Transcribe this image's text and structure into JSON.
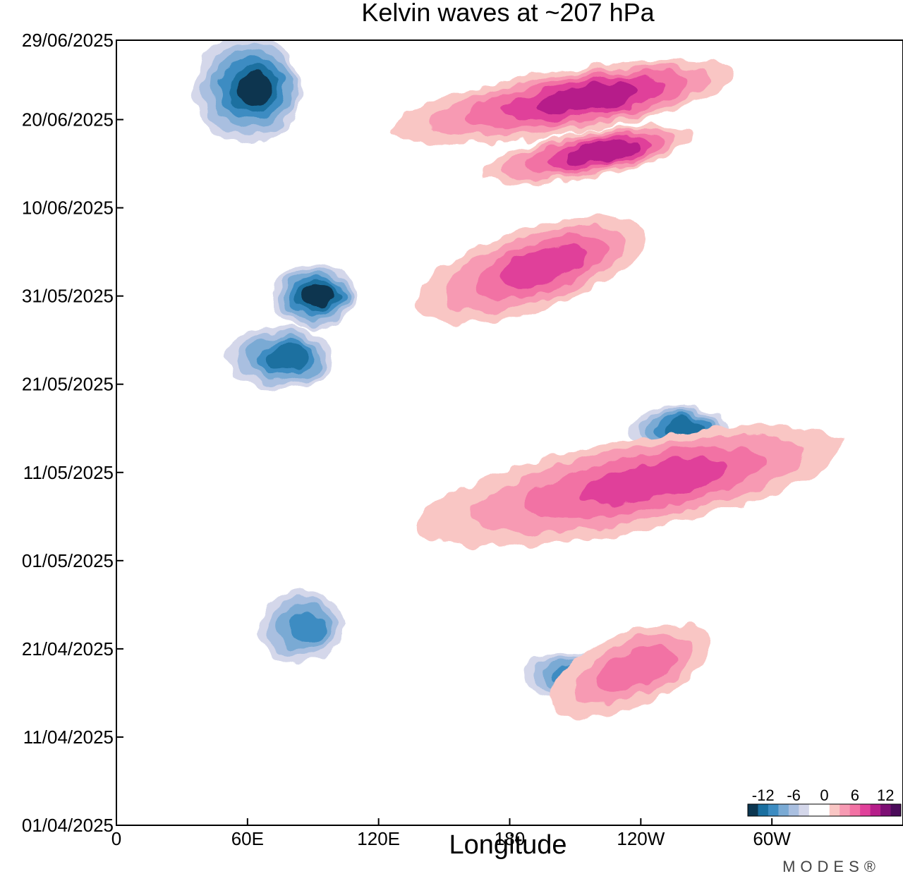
{
  "chart_data": {
    "type": "heatmap",
    "title": "Kelvin waves at ~207 hPa",
    "xlabel": "Longitude",
    "ylabel": "",
    "x_ticks": [
      "0",
      "60E",
      "120E",
      "180",
      "120W",
      "60W"
    ],
    "x_tick_values": [
      0,
      60,
      120,
      180,
      240,
      300
    ],
    "xlim": [
      0,
      360
    ],
    "y_ticks": [
      "29/06/2025",
      "20/06/2025",
      "10/06/2025",
      "31/05/2025",
      "21/05/2025",
      "11/05/2025",
      "01/05/2025",
      "21/04/2025",
      "11/04/2025",
      "01/04/2025"
    ],
    "y_tick_values": [
      "2025-06-29",
      "2025-06-20",
      "2025-06-10",
      "2025-05-31",
      "2025-05-21",
      "2025-05-11",
      "2025-05-01",
      "2025-04-21",
      "2025-04-11",
      "2025-04-01"
    ],
    "ylim": [
      "2025-04-01",
      "2025-06-29"
    ],
    "colorbar": {
      "labels": [
        "-12",
        "-6",
        "0",
        "6",
        "12"
      ],
      "label_values": [
        -12,
        -6,
        0,
        6,
        12
      ],
      "colors": [
        "#0b3650",
        "#1a6fa0",
        "#3d8cc2",
        "#7aaad4",
        "#a9bfe0",
        "#d4d7ea",
        "#ffffff",
        "#ffffff",
        "#f9c6c4",
        "#f79ab3",
        "#f272a4",
        "#e0419a",
        "#b61e8a",
        "#7d0f74",
        "#4b0b5a"
      ]
    },
    "features": [
      {
        "sign": "negative",
        "peak": -12,
        "lon": [
          40,
          80
        ],
        "date": [
          "2025-06-29",
          "2025-06-18"
        ]
      },
      {
        "sign": "negative",
        "peak": -12,
        "lon": [
          75,
          105
        ],
        "date": [
          "2025-06-03",
          "2025-05-28"
        ]
      },
      {
        "sign": "negative",
        "peak": -10,
        "lon": [
          55,
          95
        ],
        "date": [
          "2025-05-27",
          "2025-05-21"
        ]
      },
      {
        "sign": "negative",
        "peak": -8,
        "lon": [
          70,
          100
        ],
        "date": [
          "2025-04-27",
          "2025-04-20"
        ]
      },
      {
        "sign": "negative",
        "peak": -10,
        "lon": [
          240,
          275
        ],
        "date": [
          "2025-05-18",
          "2025-05-14"
        ]
      },
      {
        "sign": "negative",
        "peak": -8,
        "lon": [
          190,
          225
        ],
        "date": [
          "2025-04-20",
          "2025-04-16"
        ]
      },
      {
        "sign": "positive",
        "peak": 10,
        "lon": [
          130,
          280
        ],
        "date": [
          "2025-06-25",
          "2025-06-19"
        ]
      },
      {
        "sign": "positive",
        "peak": 10,
        "lon": [
          170,
          260
        ],
        "date": [
          "2025-06-18",
          "2025-06-14"
        ]
      },
      {
        "sign": "positive",
        "peak": 8,
        "lon": [
          140,
          240
        ],
        "date": [
          "2025-06-07",
          "2025-05-30"
        ]
      },
      {
        "sign": "positive",
        "peak": 8,
        "lon": [
          140,
          330
        ],
        "date": [
          "2025-05-14",
          "2025-05-05"
        ]
      },
      {
        "sign": "positive",
        "peak": 6,
        "lon": [
          200,
          270
        ],
        "date": [
          "2025-04-22",
          "2025-04-15"
        ]
      }
    ]
  },
  "logo_text": "MODES®"
}
